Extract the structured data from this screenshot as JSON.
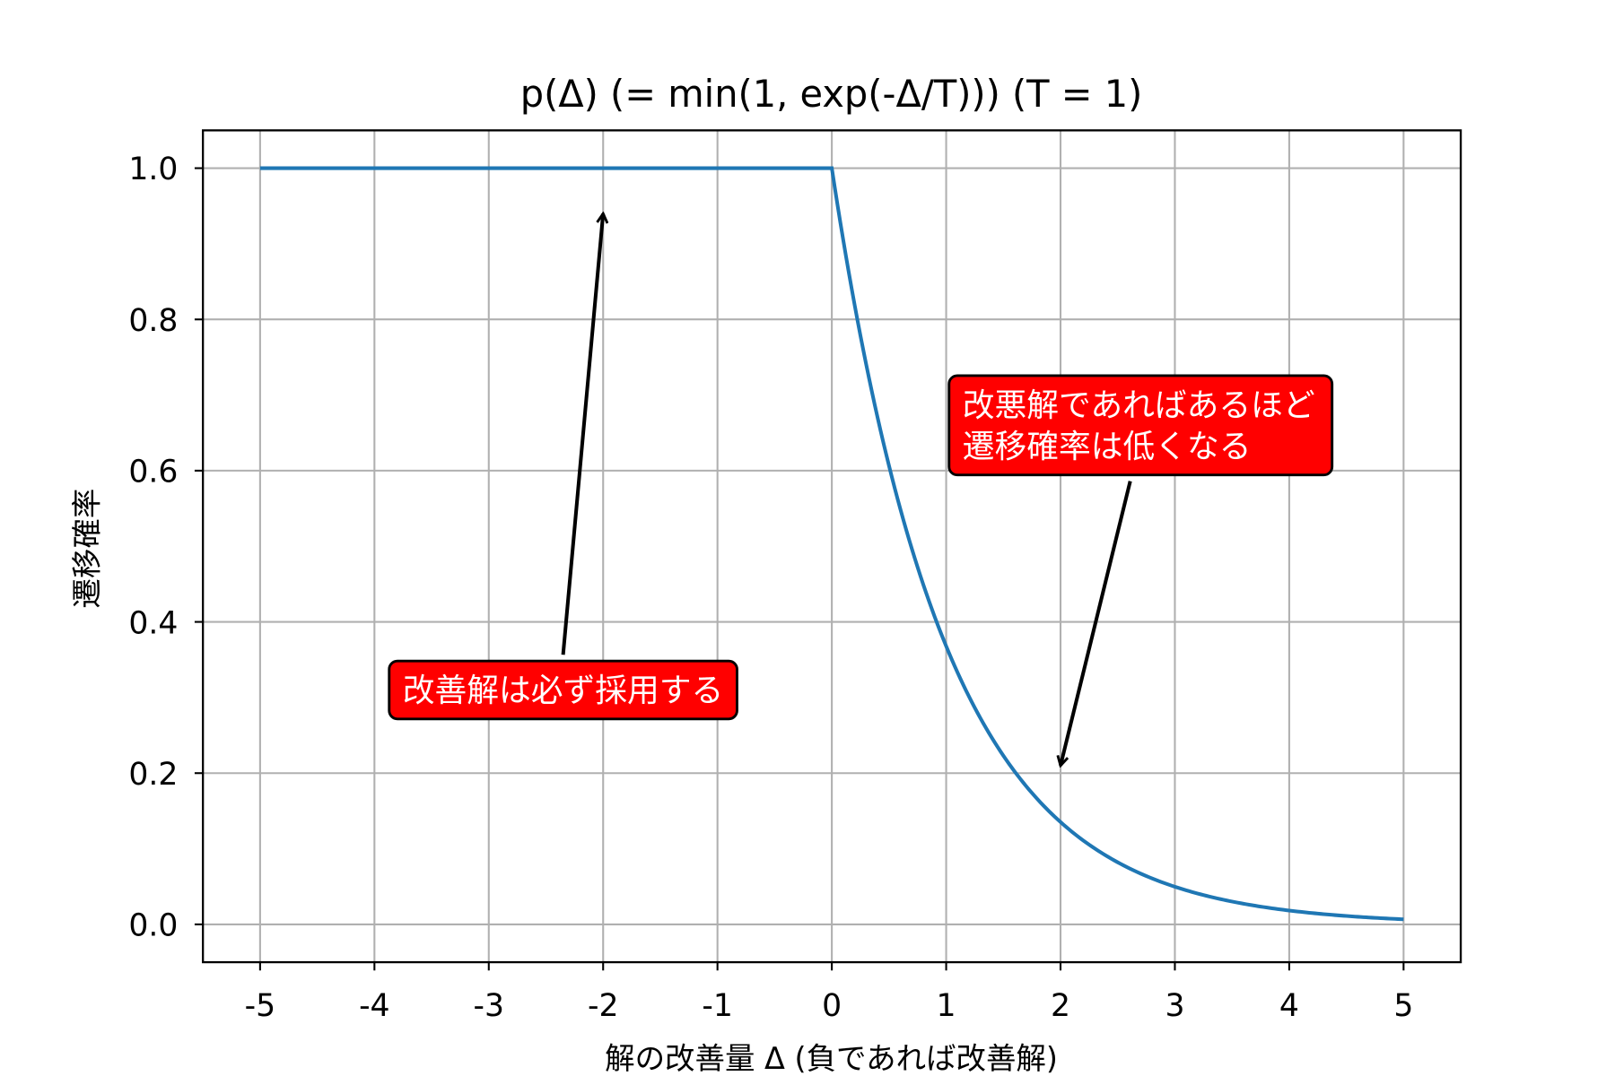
{
  "chart_data": {
    "type": "line",
    "title": "p(Δ) (= min(1, exp(-Δ/T))) (T = 1)",
    "xlabel": "解の改善量 Δ (負であれば改善解)",
    "ylabel": "遷移確率",
    "xlim": [
      -5.5,
      5.5
    ],
    "ylim": [
      -0.05,
      1.05
    ],
    "xticks": [
      -5,
      -4,
      -3,
      -2,
      -1,
      0,
      1,
      2,
      3,
      4,
      5
    ],
    "xtick_labels": [
      "-5",
      "-4",
      "-3",
      "-2",
      "-1",
      "0",
      "1",
      "2",
      "3",
      "4",
      "5"
    ],
    "yticks": [
      0.0,
      0.2,
      0.4,
      0.6,
      0.8,
      1.0
    ],
    "ytick_labels": [
      "0.0",
      "0.2",
      "0.4",
      "0.6",
      "0.8",
      "1.0"
    ],
    "grid": true,
    "series": [
      {
        "function": "min(1, exp(-x/T))",
        "T": 1,
        "x_range": [
          -5,
          5
        ],
        "color": "#1f77b4"
      }
    ],
    "annotations": [
      {
        "text": "改善解は必ず採用する",
        "xy": [
          -2,
          0.94
        ],
        "xytext": [
          -2.35,
          0.31
        ],
        "box_color": "#ff0000",
        "text_color": "#ffffff"
      },
      {
        "text": "改悪解であればあるほど\n遷移確率は低くなる",
        "lines": [
          "改悪解であればあるほど",
          "遷移確率は低くなる"
        ],
        "xy": [
          2,
          0.21
        ],
        "xytext": [
          2.7,
          0.66
        ],
        "box_color": "#ff0000",
        "text_color": "#ffffff"
      }
    ]
  }
}
